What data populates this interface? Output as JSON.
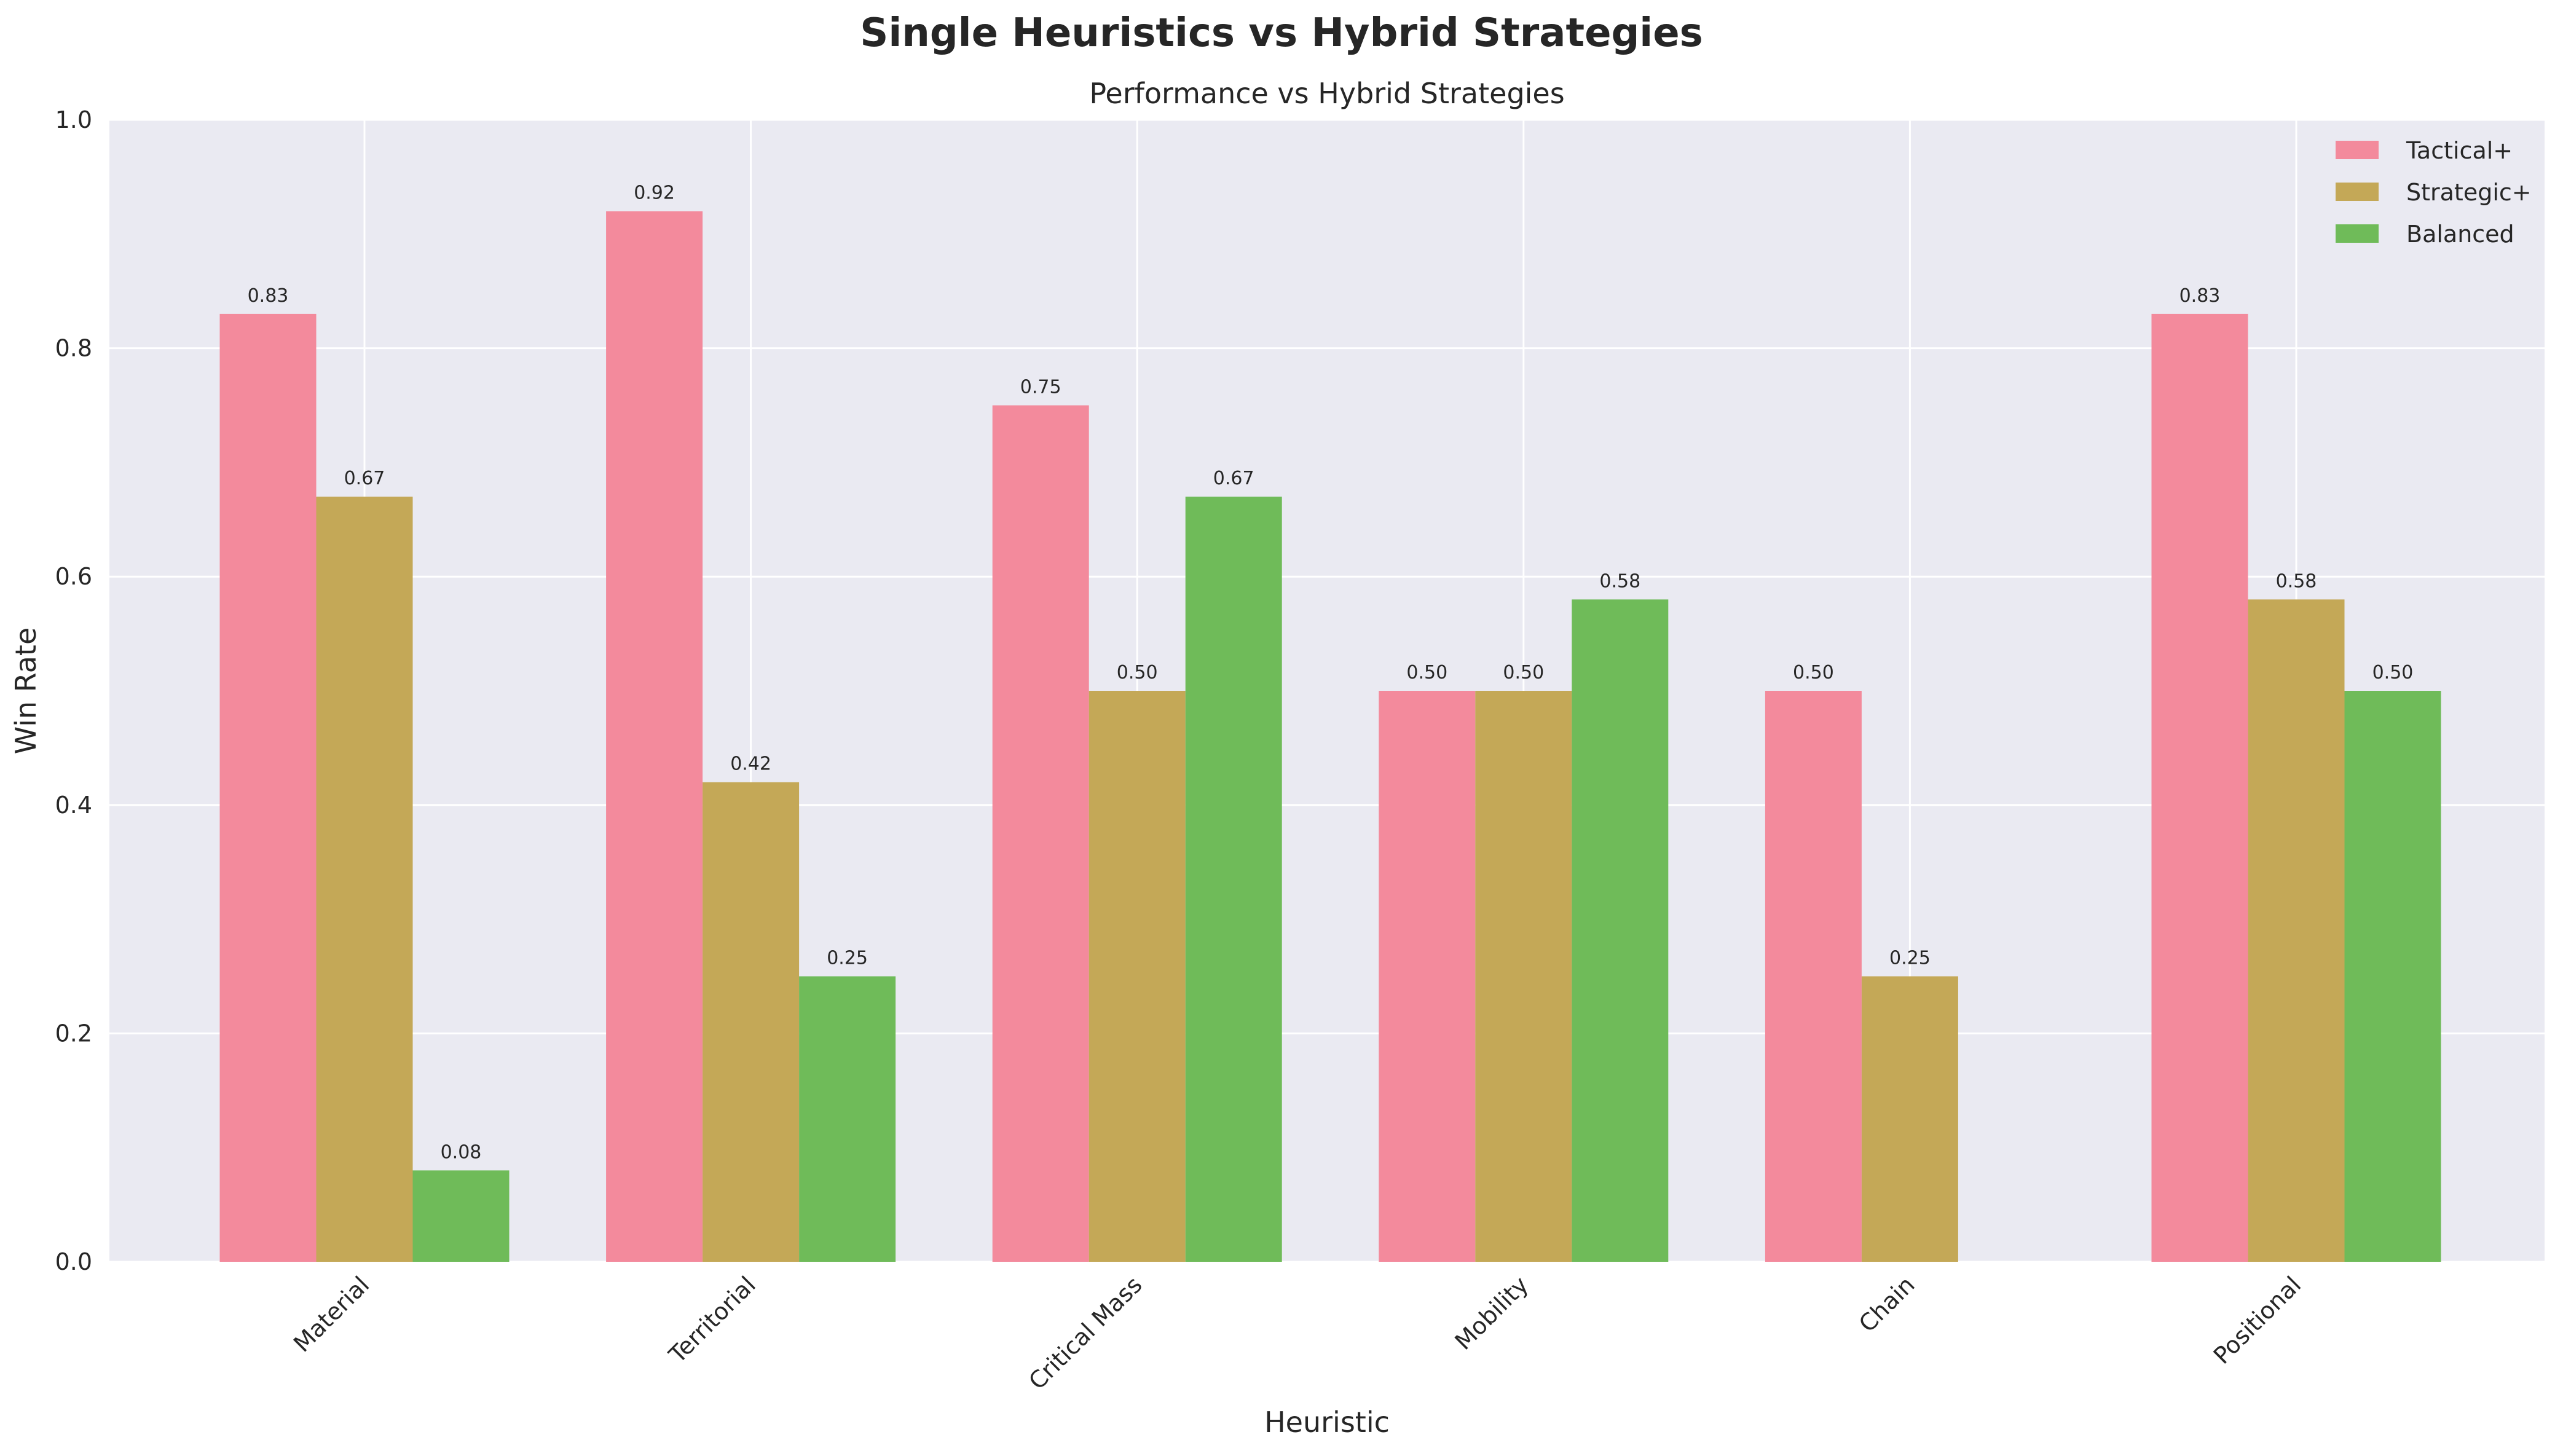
{
  "chart_data": {
    "type": "bar",
    "title": "Single Heuristics vs Hybrid Strategies",
    "subtitle": "Performance vs Hybrid Strategies",
    "xlabel": "Heuristic",
    "ylabel": "Win Rate",
    "ylim": [
      0,
      1.0
    ],
    "yticks": [
      "0.0",
      "0.2",
      "0.4",
      "0.6",
      "0.8",
      "1.0"
    ],
    "grid": true,
    "legend_position": "top-right",
    "categories": [
      "Material",
      "Territorial",
      "Critical Mass",
      "Mobility",
      "Chain",
      "Positional"
    ],
    "series": [
      {
        "name": "Tactical+",
        "color": "#f38a9c",
        "values": [
          0.83,
          0.92,
          0.75,
          0.5,
          0.5,
          0.83
        ],
        "labels": [
          "0.83",
          "0.92",
          "0.75",
          "0.50",
          "0.50",
          "0.83"
        ]
      },
      {
        "name": "Strategic+",
        "color": "#c4a857",
        "values": [
          0.67,
          0.42,
          0.5,
          0.5,
          0.25,
          0.58
        ],
        "labels": [
          "0.67",
          "0.42",
          "0.50",
          "0.50",
          "0.25",
          "0.58"
        ]
      },
      {
        "name": "Balanced",
        "color": "#6fbb59",
        "values": [
          0.08,
          0.25,
          0.67,
          0.58,
          0.0,
          0.5
        ],
        "labels": [
          "0.08",
          "0.25",
          "0.67",
          "0.58",
          "",
          "0.50"
        ]
      }
    ]
  }
}
